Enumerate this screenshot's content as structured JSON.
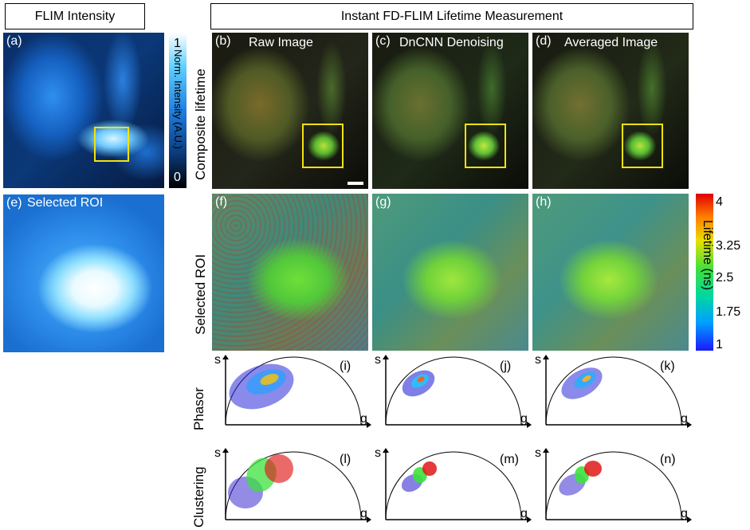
{
  "headers": {
    "left": "FLIM Intensity",
    "right": "Instant FD-FLIM Lifetime Measurement"
  },
  "row_labels": {
    "composite": "Composite lifetime",
    "roi": "Selected ROI",
    "phasor": "Phasor",
    "clustering": "Clustering"
  },
  "panels": {
    "a": {
      "tag": "(a)"
    },
    "b": {
      "tag": "(b)",
      "caption": "Raw Image"
    },
    "c": {
      "tag": "(c)",
      "caption": "DnCNN Denoising"
    },
    "d": {
      "tag": "(d)",
      "caption": "Averaged Image"
    },
    "e": {
      "tag": "(e)",
      "caption": "Selected ROI"
    },
    "f": {
      "tag": "(f)"
    },
    "g": {
      "tag": "(g)"
    },
    "h": {
      "tag": "(h)"
    },
    "i": {
      "tag": "(i)"
    },
    "j": {
      "tag": "(j)"
    },
    "k": {
      "tag": "(k)"
    },
    "l": {
      "tag": "(l)"
    },
    "m": {
      "tag": "(m)"
    },
    "n": {
      "tag": "(n)"
    }
  },
  "intensity_colorbar": {
    "max_label": "1",
    "min_label": "0",
    "title": "Norm. Intensity (A.U.)",
    "colors": [
      "#000000",
      "#0a3a7a",
      "#1f7fe0",
      "#5fd0ff",
      "#ffffff"
    ]
  },
  "lifetime_colorbar": {
    "title": "Lifetime (ns)",
    "ticks": [
      "4",
      "3.25",
      "2.5",
      "1.75",
      "1"
    ],
    "colors": [
      "#1a1aff",
      "#00a0ff",
      "#00d8a0",
      "#40e040",
      "#e8e000",
      "#ff8000",
      "#e00000"
    ]
  },
  "phasor_axes": {
    "s": "s",
    "g": "g"
  },
  "roi_color": "#f4e20c",
  "cluster_colors": {
    "low": "#3b2bd0",
    "mid": "#3ce23c",
    "high": "#e01818"
  }
}
